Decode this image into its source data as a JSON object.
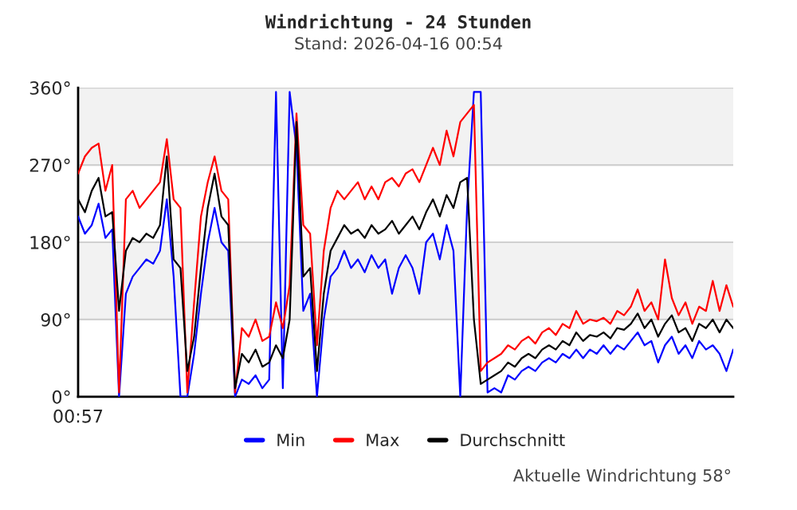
{
  "chart_data": {
    "type": "line",
    "title": "Windrichtung - 24 Stunden",
    "subtitle": "Stand: 2026-04-16 00:54",
    "annotations": [
      "00:57",
      "Aktuelle Windrichtung 58°"
    ],
    "categories": [
      null,
      null,
      null,
      null,
      null,
      null,
      null,
      null,
      null,
      null,
      null,
      null,
      null,
      null,
      null,
      null,
      null,
      null,
      null,
      null,
      null,
      null,
      null,
      null,
      null,
      null,
      null,
      null,
      null,
      null,
      null,
      null,
      null,
      null,
      null,
      null,
      null,
      null,
      null,
      null,
      null,
      null,
      null,
      null,
      null,
      null,
      null,
      null,
      null,
      null,
      null,
      null,
      null,
      null,
      null,
      null,
      null,
      null,
      null,
      null,
      null,
      null,
      null,
      null,
      null,
      null,
      null,
      null,
      null,
      null,
      null,
      null,
      null,
      null,
      null,
      null,
      null,
      null,
      null,
      null,
      null,
      null,
      null,
      null,
      null,
      null,
      null,
      null,
      null,
      null,
      null,
      null,
      null,
      null,
      null,
      null,
      null
    ],
    "series": [
      {
        "name": "Min",
        "color": "#0000ff",
        "values": [
          210,
          190,
          200,
          225,
          185,
          195,
          0,
          120,
          140,
          150,
          160,
          155,
          170,
          230,
          140,
          0,
          0,
          50,
          120,
          180,
          220,
          180,
          170,
          0,
          20,
          15,
          25,
          10,
          20,
          355,
          10,
          355,
          290,
          100,
          120,
          0,
          90,
          140,
          150,
          170,
          150,
          160,
          145,
          165,
          150,
          160,
          120,
          150,
          165,
          150,
          120,
          180,
          190,
          160,
          200,
          170,
          0,
          220,
          355,
          355,
          5,
          10,
          5,
          25,
          20,
          30,
          35,
          30,
          40,
          45,
          40,
          50,
          45,
          55,
          45,
          55,
          50,
          60,
          50,
          60,
          55,
          65,
          75,
          60,
          65,
          40,
          60,
          70,
          50,
          60,
          45,
          65,
          55,
          60,
          50,
          30,
          55
        ]
      },
      {
        "name": "Max",
        "color": "#ff0000",
        "values": [
          260,
          280,
          290,
          295,
          240,
          270,
          5,
          230,
          240,
          220,
          230,
          240,
          250,
          300,
          230,
          220,
          5,
          110,
          210,
          250,
          280,
          240,
          230,
          5,
          80,
          70,
          90,
          65,
          70,
          110,
          80,
          130,
          330,
          200,
          190,
          60,
          170,
          220,
          240,
          230,
          240,
          250,
          230,
          245,
          230,
          250,
          255,
          245,
          260,
          265,
          250,
          270,
          290,
          270,
          310,
          280,
          320,
          330,
          340,
          30,
          40,
          45,
          50,
          60,
          55,
          65,
          70,
          62,
          75,
          80,
          72,
          85,
          80,
          100,
          85,
          90,
          88,
          92,
          85,
          100,
          95,
          105,
          125,
          100,
          110,
          90,
          160,
          115,
          95,
          110,
          85,
          105,
          100,
          135,
          100,
          130,
          105
        ]
      },
      {
        "name": "Durchschnitt",
        "color": "#000000",
        "values": [
          230,
          215,
          240,
          255,
          210,
          215,
          100,
          170,
          185,
          180,
          190,
          185,
          200,
          280,
          160,
          150,
          30,
          70,
          150,
          220,
          260,
          210,
          200,
          10,
          50,
          40,
          55,
          35,
          40,
          60,
          45,
          90,
          320,
          140,
          150,
          30,
          120,
          170,
          185,
          200,
          190,
          195,
          185,
          200,
          190,
          195,
          205,
          190,
          200,
          210,
          195,
          215,
          230,
          210,
          235,
          220,
          250,
          255,
          90,
          15,
          20,
          25,
          30,
          40,
          35,
          45,
          50,
          45,
          55,
          60,
          55,
          65,
          60,
          75,
          65,
          72,
          70,
          75,
          68,
          80,
          78,
          85,
          97,
          80,
          90,
          70,
          85,
          95,
          75,
          80,
          65,
          85,
          80,
          90,
          75,
          90,
          80
        ]
      }
    ],
    "ylim": [
      0,
      360
    ],
    "yticks": [
      {
        "value": 0,
        "label": "0°"
      },
      {
        "value": 90,
        "label": "90°"
      },
      {
        "value": 180,
        "label": "180°"
      },
      {
        "value": 270,
        "label": "270°"
      },
      {
        "value": 360,
        "label": "360°"
      }
    ],
    "bands": [
      {
        "axis": "y",
        "from": 90,
        "to": 180,
        "color": "#f2f2f2"
      },
      {
        "axis": "y",
        "from": 270,
        "to": 360,
        "color": "#f2f2f2"
      }
    ],
    "grid": "y",
    "legend": "bottom",
    "marker": "none",
    "line_style": "solid"
  }
}
